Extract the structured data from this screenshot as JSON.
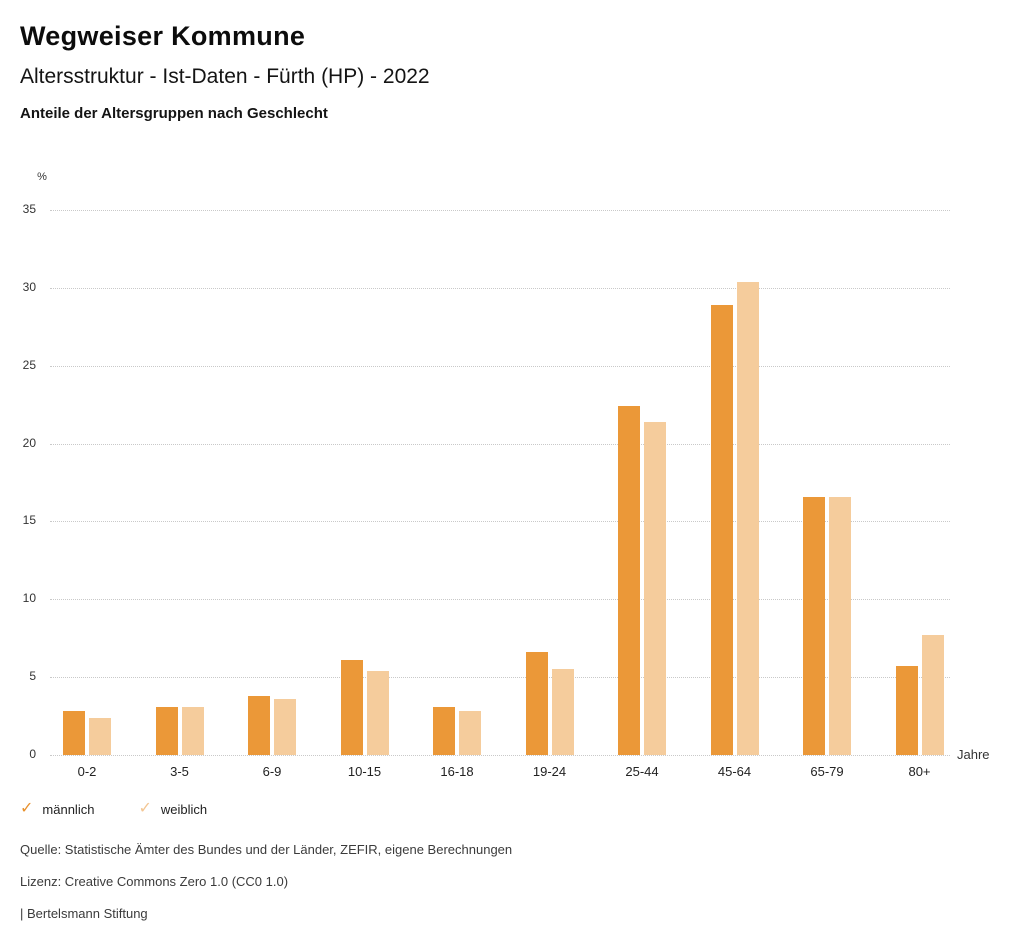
{
  "header": {
    "title": "Wegweiser Kommune",
    "subtitle": "Altersstruktur - Ist-Daten - Fürth (HP) - 2022",
    "chart_heading": "Anteile der Altersgruppen nach Geschlecht"
  },
  "chart_data": {
    "type": "bar",
    "title": "Anteile der Altersgruppen nach Geschlecht",
    "categories": [
      "0-2",
      "3-5",
      "6-9",
      "10-15",
      "16-18",
      "19-24",
      "25-44",
      "45-64",
      "65-79",
      "80+"
    ],
    "series": [
      {
        "name": "männlich",
        "color": "#EB9838",
        "values": [
          2.8,
          3.1,
          3.8,
          6.1,
          3.1,
          6.6,
          22.4,
          28.9,
          16.6,
          5.7
        ]
      },
      {
        "name": "weiblich",
        "color": "#F5CC9C",
        "values": [
          2.4,
          3.1,
          3.6,
          5.4,
          2.8,
          5.5,
          21.4,
          30.4,
          16.6,
          7.7
        ]
      }
    ],
    "ylabel": "%",
    "xlabel": "Jahre",
    "ylim": [
      0,
      35
    ],
    "ytick_step": 5,
    "grid": "dotted horizontal gridlines",
    "legend_position": "bottom-left"
  },
  "legend": {
    "items": [
      {
        "label": "männlich",
        "icon": "check",
        "color": "#E8912D"
      },
      {
        "label": "weiblich",
        "icon": "check",
        "color": "#F3C693"
      }
    ]
  },
  "footer": {
    "source": "Quelle: Statistische Ämter des Bundes und der Länder, ZEFIR, eigene Berechnungen",
    "license": "Lizenz: Creative Commons Zero 1.0 (CC0 1.0)",
    "attribution": "| Bertelsmann Stiftung"
  }
}
